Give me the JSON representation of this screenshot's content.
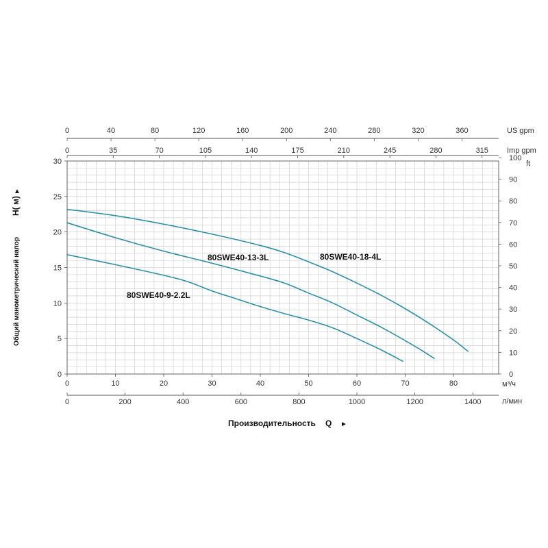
{
  "chart_data": {
    "type": "line",
    "title": "",
    "ylabel": "Общий манометрический напор",
    "ylabel_symbol": "H( м)",
    "xlabel": "Производительность",
    "xlabel_symbol": "Q",
    "arrow_up": "▲",
    "arrow_right": "►",
    "x_unit": "м³/ч",
    "x_range": [
      0,
      88
    ],
    "x_ticks": [
      0,
      10,
      20,
      30,
      40,
      50,
      60,
      70,
      80
    ],
    "y_unit": "м",
    "y_range": [
      0,
      30
    ],
    "y_ticks": [
      0,
      5,
      10,
      15,
      20,
      25,
      30
    ],
    "grid": true,
    "line_color": "#2a8fa8",
    "secondary_axes": {
      "top_us_gpm": {
        "unit": "US gpm",
        "ticks": [
          0,
          40,
          80,
          120,
          160,
          200,
          240,
          280,
          320,
          360
        ]
      },
      "top_imp_gpm": {
        "unit": "Imp gpm",
        "ticks": [
          0,
          35,
          70,
          105,
          140,
          175,
          210,
          245,
          280,
          315
        ]
      },
      "bottom_lpm": {
        "unit": "л/мин",
        "ticks": [
          0,
          200,
          400,
          600,
          800,
          1000,
          1200,
          1400
        ]
      },
      "right_ft": {
        "unit": "ft",
        "ticks": [
          0,
          10,
          20,
          30,
          40,
          50,
          60,
          70,
          80,
          90,
          100
        ]
      }
    },
    "series": [
      {
        "name": "80SWE40-18-4L",
        "x": [
          0,
          10,
          20,
          30,
          40,
          45,
          50,
          55,
          60,
          65,
          70,
          75,
          80,
          83
        ],
        "y": [
          23.2,
          22.3,
          21.1,
          19.7,
          18.1,
          17.1,
          15.8,
          14.4,
          12.8,
          11.1,
          9.2,
          7.1,
          4.8,
          3.2
        ]
      },
      {
        "name": "80SWE40-13-3L",
        "x": [
          0,
          10,
          20,
          30,
          40,
          45,
          50,
          55,
          60,
          65,
          70,
          73,
          76
        ],
        "y": [
          21.3,
          19.2,
          17.3,
          15.6,
          13.8,
          12.8,
          11.4,
          10.0,
          8.3,
          6.6,
          4.7,
          3.5,
          2.2
        ]
      },
      {
        "name": "80SWE40-9-2.2L",
        "x": [
          0,
          10,
          20,
          25,
          30,
          35,
          40,
          45,
          50,
          55,
          60,
          65,
          69.5
        ],
        "y": [
          16.8,
          15.4,
          13.9,
          13.0,
          11.7,
          10.6,
          9.5,
          8.5,
          7.6,
          6.5,
          5.0,
          3.4,
          1.8
        ]
      }
    ]
  }
}
